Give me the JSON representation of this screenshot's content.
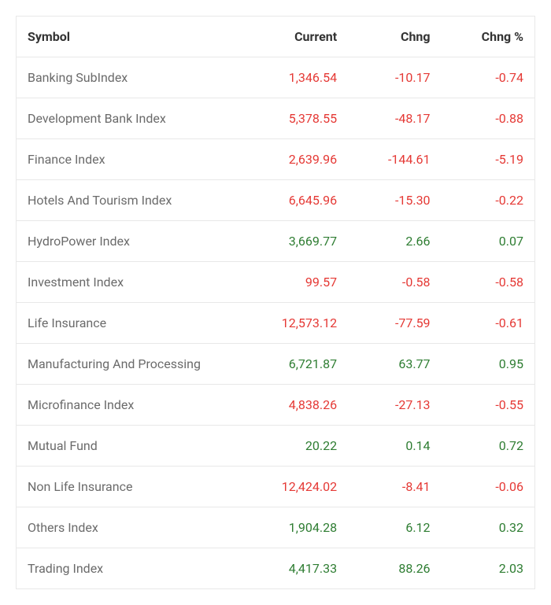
{
  "table": {
    "columns": [
      "Symbol",
      "Current",
      "Chng",
      "Chng %"
    ],
    "colors": {
      "negative": "#e53935",
      "positive": "#2e7d32",
      "neutral": "#6b6b6b",
      "header": "#333333",
      "border": "#e8e8e8",
      "background": "#ffffff"
    },
    "rows": [
      {
        "symbol": "Banking SubIndex",
        "current": "1,346.54",
        "chng": "-10.17",
        "chng_pct": "-0.74",
        "direction": "neg"
      },
      {
        "symbol": "Development Bank Index",
        "current": "5,378.55",
        "chng": "-48.17",
        "chng_pct": "-0.88",
        "direction": "neg"
      },
      {
        "symbol": "Finance Index",
        "current": "2,639.96",
        "chng": "-144.61",
        "chng_pct": "-5.19",
        "direction": "neg"
      },
      {
        "symbol": "Hotels And Tourism Index",
        "current": "6,645.96",
        "chng": "-15.30",
        "chng_pct": "-0.22",
        "direction": "neg"
      },
      {
        "symbol": "HydroPower Index",
        "current": "3,669.77",
        "chng": "2.66",
        "chng_pct": "0.07",
        "direction": "pos"
      },
      {
        "symbol": "Investment Index",
        "current": "99.57",
        "chng": "-0.58",
        "chng_pct": "-0.58",
        "direction": "neg"
      },
      {
        "symbol": "Life Insurance",
        "current": "12,573.12",
        "chng": "-77.59",
        "chng_pct": "-0.61",
        "direction": "neg"
      },
      {
        "symbol": "Manufacturing And Processing",
        "current": "6,721.87",
        "chng": "63.77",
        "chng_pct": "0.95",
        "direction": "pos"
      },
      {
        "symbol": "Microfinance Index",
        "current": "4,838.26",
        "chng": "-27.13",
        "chng_pct": "-0.55",
        "direction": "neg"
      },
      {
        "symbol": "Mutual Fund",
        "current": "20.22",
        "chng": "0.14",
        "chng_pct": "0.72",
        "direction": "pos"
      },
      {
        "symbol": "Non Life Insurance",
        "current": "12,424.02",
        "chng": "-8.41",
        "chng_pct": "-0.06",
        "direction": "neg"
      },
      {
        "symbol": "Others Index",
        "current": "1,904.28",
        "chng": "6.12",
        "chng_pct": "0.32",
        "direction": "pos"
      },
      {
        "symbol": "Trading Index",
        "current": "4,417.33",
        "chng": "88.26",
        "chng_pct": "2.03",
        "direction": "pos"
      }
    ]
  }
}
